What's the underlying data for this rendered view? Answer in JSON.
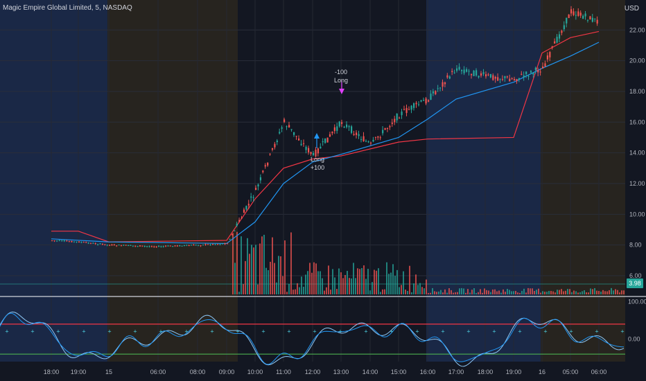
{
  "header": {
    "symbol_name": "Magic Empire Global Limited",
    "interval": "5",
    "exchange": "NASDAQ"
  },
  "price_axis": {
    "currency": "USD",
    "ticks": [
      "22.00",
      "20.00",
      "18.00",
      "16.00",
      "14.00",
      "12.00",
      "10.00",
      "8.00",
      "6.00"
    ],
    "last_volume_badge": "3.98"
  },
  "oscillator_axis": {
    "ticks": [
      "100.00",
      "0.00"
    ]
  },
  "time_axis": {
    "ticks": [
      "18:00",
      "19:00",
      "15",
      "06:00",
      "08:00",
      "09:00",
      "10:00",
      "11:00",
      "12:00",
      "13:00",
      "14:00",
      "15:00",
      "16:00",
      "17:00",
      "18:00",
      "19:00",
      "16",
      "05:00",
      "06:00"
    ]
  },
  "signals": [
    {
      "lines": [
        "-100",
        "Long"
      ],
      "kind": "exit"
    },
    {
      "lines": [
        "Long",
        "+100"
      ],
      "kind": "entry"
    }
  ],
  "colors": {
    "background": "#131722",
    "up": "#26a69a",
    "down": "#ef5350",
    "vwap": "#f23645",
    "ema": "#2196f3",
    "session_premarket": "#1c2a4a",
    "session_postmarket": "#2a261f",
    "oscillator_upper": "#f23645",
    "oscillator_lower": "#4caf50",
    "marker": "#e040fb"
  },
  "chart_data": {
    "type": "candlestick",
    "title": "Magic Empire Global Limited, 5, NASDAQ",
    "ylim": [
      6.0,
      23.5
    ],
    "y_scale": "linear",
    "grid": true,
    "sessions": [
      "post-market",
      "pre-market",
      "regular",
      "post-market",
      "pre-market"
    ],
    "price_path": [
      [
        "18:00",
        8.3
      ],
      [
        "19:00",
        8.2
      ],
      [
        "15",
        8.0
      ],
      [
        "06:00",
        7.9
      ],
      [
        "08:00",
        8.0
      ],
      [
        "09:00",
        8.1
      ],
      [
        "10:00",
        11.5
      ],
      [
        "11:00",
        16.0
      ],
      [
        "12:00",
        13.8
      ],
      [
        "13:00",
        16.0
      ],
      [
        "14:00",
        14.5
      ],
      [
        "15:00",
        16.5
      ],
      [
        "16:00",
        17.5
      ],
      [
        "17:00",
        19.5
      ],
      [
        "18:00",
        19.0
      ],
      [
        "19:00",
        18.8
      ],
      [
        "16",
        19.5
      ],
      [
        "05:00",
        23.2
      ],
      [
        "06:00",
        22.5
      ]
    ],
    "vwap_path": [
      [
        "18:00",
        8.9
      ],
      [
        "19:00",
        8.9
      ],
      [
        "15",
        8.2
      ],
      [
        "09:00",
        8.3
      ],
      [
        "10:00",
        11.0
      ],
      [
        "11:00",
        13.0
      ],
      [
        "12:00",
        13.6
      ],
      [
        "13:00",
        13.8
      ],
      [
        "15:00",
        14.7
      ],
      [
        "16:00",
        14.9
      ],
      [
        "19:00",
        15.0
      ],
      [
        "16",
        20.5
      ],
      [
        "05:00",
        21.5
      ],
      [
        "06:00",
        21.9
      ]
    ],
    "ema_path": [
      [
        "18:00",
        8.4
      ],
      [
        "15",
        8.2
      ],
      [
        "09:00",
        8.1
      ],
      [
        "10:00",
        9.5
      ],
      [
        "11:00",
        12.0
      ],
      [
        "12:00",
        13.4
      ],
      [
        "13:00",
        13.9
      ],
      [
        "15:00",
        15.0
      ],
      [
        "16:00",
        16.2
      ],
      [
        "17:00",
        17.5
      ],
      [
        "19:00",
        18.6
      ],
      [
        "16",
        19.5
      ],
      [
        "05:00",
        20.3
      ],
      [
        "06:00",
        21.2
      ]
    ],
    "signals": [
      {
        "time": "12:00",
        "price": 13.6,
        "label": "Long +100"
      },
      {
        "time": "13:00",
        "price": 16.2,
        "label": "-100 Long"
      }
    ],
    "volume_last": 3.98,
    "oscillator": {
      "ylim": [
        -60,
        110
      ],
      "upper_level": 40,
      "lower_level": -40
    }
  }
}
